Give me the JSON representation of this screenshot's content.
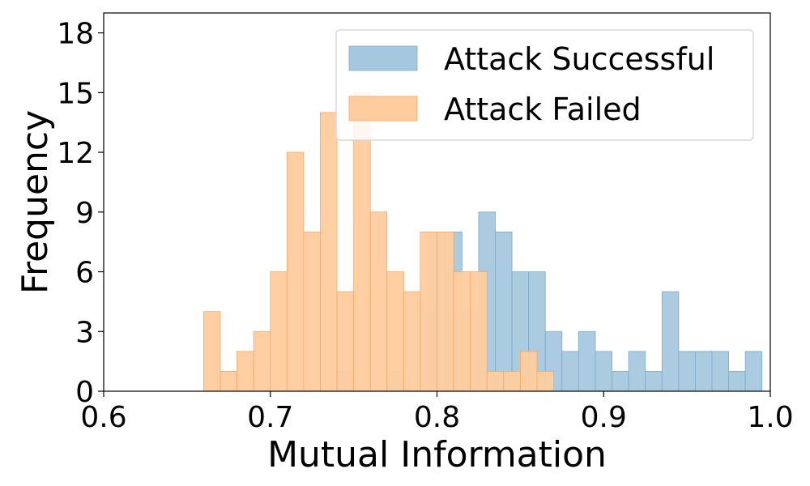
{
  "chart_data": {
    "type": "histogram",
    "xlabel": "Mutual Information",
    "ylabel": "Frequency",
    "xlim": [
      0.6,
      1.0
    ],
    "ylim": [
      0,
      19
    ],
    "xticks": [
      "0.6",
      "0.7",
      "0.8",
      "0.9",
      "1.0"
    ],
    "yticks": [
      "0",
      "3",
      "6",
      "9",
      "12",
      "15",
      "18"
    ],
    "bin_width": 0.01,
    "legend": {
      "position": "top-right"
    },
    "series": [
      {
        "name": "Attack Successful",
        "color": "#a6c8df",
        "edge_color": "#7fa9c8",
        "bins": [
          {
            "x": 0.745,
            "count": 1
          },
          {
            "x": 0.775,
            "count": 1
          },
          {
            "x": 0.795,
            "count": 4
          },
          {
            "x": 0.8,
            "count": 8
          },
          {
            "x": 0.81,
            "count": 8
          },
          {
            "x": 0.82,
            "count": 4
          },
          {
            "x": 0.83,
            "count": 9
          },
          {
            "x": 0.84,
            "count": 8
          },
          {
            "x": 0.85,
            "count": 6
          },
          {
            "x": 0.86,
            "count": 6
          },
          {
            "x": 0.87,
            "count": 3
          },
          {
            "x": 0.88,
            "count": 2
          },
          {
            "x": 0.89,
            "count": 3
          },
          {
            "x": 0.9,
            "count": 2
          },
          {
            "x": 0.91,
            "count": 1
          },
          {
            "x": 0.92,
            "count": 2
          },
          {
            "x": 0.93,
            "count": 1
          },
          {
            "x": 0.94,
            "count": 5
          },
          {
            "x": 0.95,
            "count": 2
          },
          {
            "x": 0.96,
            "count": 2
          },
          {
            "x": 0.97,
            "count": 2
          },
          {
            "x": 0.98,
            "count": 1
          },
          {
            "x": 0.99,
            "count": 2
          }
        ]
      },
      {
        "name": "Attack Failed",
        "color": "#ffcc9e",
        "edge_color": "#f5a966",
        "bins": [
          {
            "x": 0.665,
            "count": 4
          },
          {
            "x": 0.675,
            "count": 1
          },
          {
            "x": 0.685,
            "count": 2
          },
          {
            "x": 0.695,
            "count": 3
          },
          {
            "x": 0.705,
            "count": 6
          },
          {
            "x": 0.715,
            "count": 12
          },
          {
            "x": 0.725,
            "count": 8
          },
          {
            "x": 0.735,
            "count": 14
          },
          {
            "x": 0.745,
            "count": 5
          },
          {
            "x": 0.755,
            "count": 15
          },
          {
            "x": 0.765,
            "count": 9
          },
          {
            "x": 0.775,
            "count": 6
          },
          {
            "x": 0.785,
            "count": 5
          },
          {
            "x": 0.795,
            "count": 8
          },
          {
            "x": 0.805,
            "count": 8
          },
          {
            "x": 0.815,
            "count": 6
          },
          {
            "x": 0.825,
            "count": 6
          },
          {
            "x": 0.835,
            "count": 1
          },
          {
            "x": 0.845,
            "count": 1
          },
          {
            "x": 0.855,
            "count": 2
          },
          {
            "x": 0.865,
            "count": 1
          }
        ]
      }
    ]
  }
}
